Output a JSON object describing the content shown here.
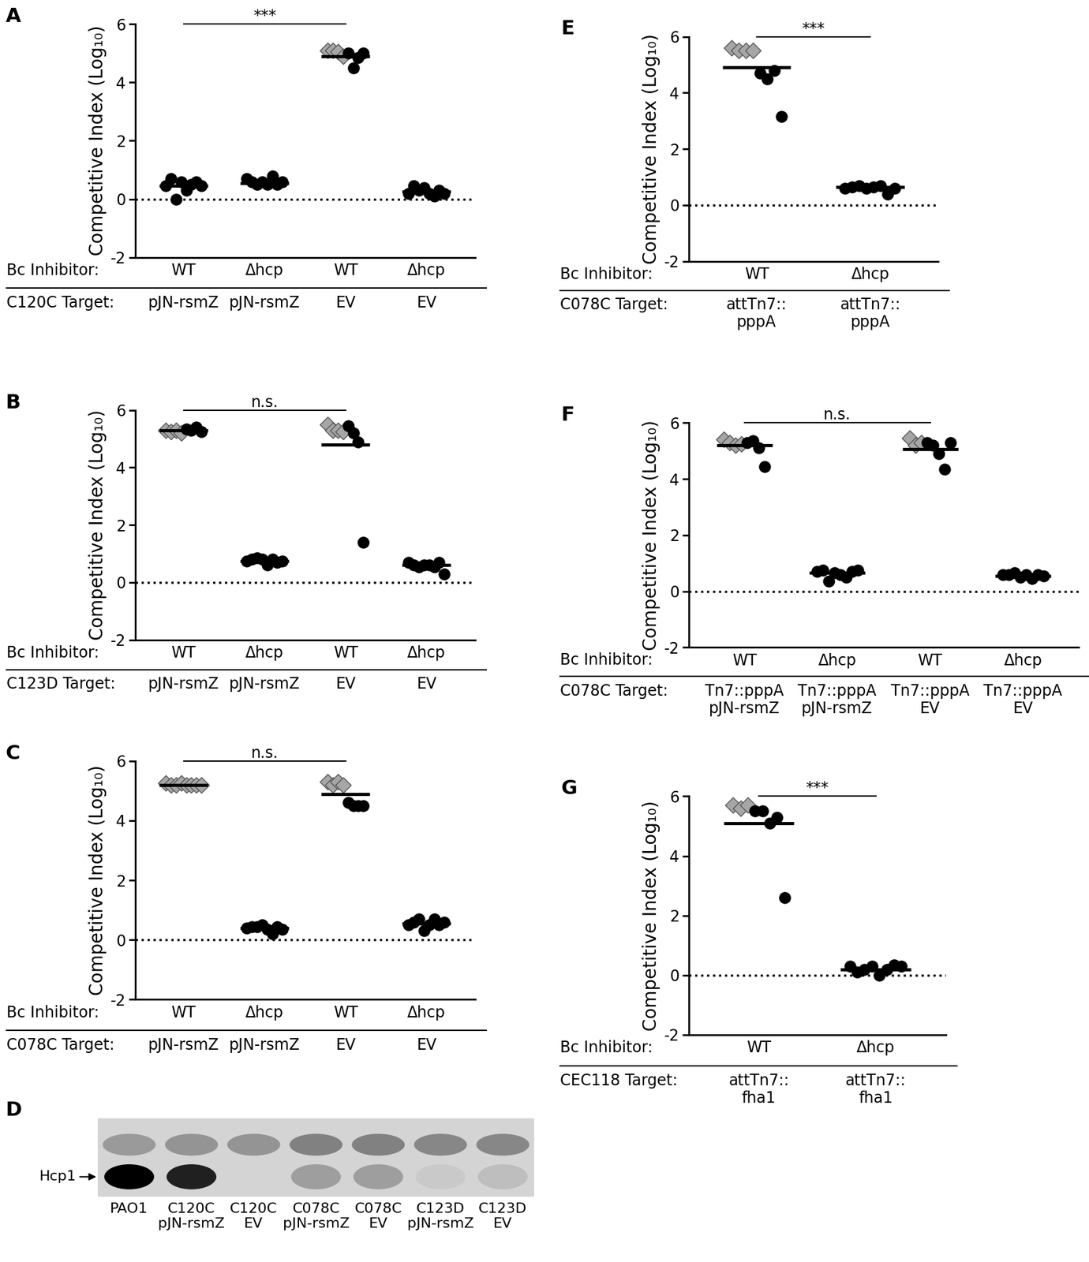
{
  "chart_data": [
    {
      "type": "scatter",
      "title": "A",
      "ylabel": "Competitive Index (Log₁₀)",
      "inhibitor_label": "Bc Inhibitor:",
      "target_label": "C120C Target:",
      "categories": [
        "WT",
        "Δhcp",
        "WT",
        "Δhcp"
      ],
      "targets": [
        "pJN-rsmZ",
        "pJN-rsmZ",
        "EV",
        "EV"
      ],
      "ylim": [
        -2,
        6
      ],
      "yticks": [
        -2,
        0,
        2,
        4,
        6
      ],
      "reference_line": 0,
      "series": [
        {
          "marker": "diamond",
          "color": "#a6a6a6",
          "values": [
            [],
            [],
            [
              5.1,
              5.1,
              5.05,
              4.9
            ],
            []
          ]
        },
        {
          "marker": "circle",
          "color": "#000000",
          "values": [
            [
              0.45,
              0.7,
              0.0,
              0.6,
              0.3,
              0.5,
              0.6,
              0.45
            ],
            [
              0.7,
              0.6,
              0.5,
              0.6,
              0.5,
              0.8,
              0.5,
              0.6
            ],
            [
              5.0,
              4.5,
              4.85,
              5.0
            ],
            [
              0.2,
              0.45,
              0.3,
              0.4,
              0.2,
              0.1,
              0.3,
              0.2
            ]
          ]
        }
      ],
      "means": [
        0.45,
        0.55,
        4.9,
        0.25
      ],
      "significance": {
        "between": [
          0,
          2
        ],
        "label": "***"
      }
    },
    {
      "type": "scatter",
      "title": "B",
      "ylabel": "Competitive Index (Log₁₀)",
      "inhibitor_label": "Bc Inhibitor:",
      "target_label": "C123D Target:",
      "categories": [
        "WT",
        "Δhcp",
        "WT",
        "Δhcp"
      ],
      "targets": [
        "pJN-rsmZ",
        "pJN-rsmZ",
        "EV",
        "EV"
      ],
      "ylim": [
        -2,
        6
      ],
      "yticks": [
        -2,
        0,
        2,
        4,
        6
      ],
      "reference_line": 0,
      "series": [
        {
          "marker": "diamond",
          "color": "#a6a6a6",
          "values": [
            [
              5.3,
              5.25,
              5.3,
              5.2
            ],
            [],
            [
              5.5,
              5.3,
              5.3,
              5.25
            ],
            []
          ]
        },
        {
          "marker": "circle",
          "color": "#000000",
          "values": [
            [
              5.35,
              5.3,
              5.4,
              5.25
            ],
            [
              0.75,
              0.8,
              0.85,
              0.8,
              0.6,
              0.8,
              0.7,
              0.75
            ],
            [
              5.45,
              5.2,
              4.9,
              1.4
            ],
            [
              0.7,
              0.6,
              0.55,
              0.6,
              0.6,
              0.55,
              0.7,
              0.3
            ]
          ]
        }
      ],
      "means": [
        5.3,
        0.75,
        4.8,
        0.6
      ],
      "significance": {
        "between": [
          0,
          2
        ],
        "label": "n.s."
      }
    },
    {
      "type": "scatter",
      "title": "C",
      "ylabel": "Competitive Index (Log₁₀)",
      "inhibitor_label": "Bc Inhibitor:",
      "target_label": "C078C Target:",
      "categories": [
        "WT",
        "Δhcp",
        "WT",
        "Δhcp"
      ],
      "targets": [
        "pJN-rsmZ",
        "pJN-rsmZ",
        "EV",
        "EV"
      ],
      "ylim": [
        -2,
        6
      ],
      "yticks": [
        -2,
        0,
        2,
        4,
        6
      ],
      "reference_line": 0,
      "series": [
        {
          "marker": "diamond",
          "color": "#a6a6a6",
          "values": [
            [
              5.25,
              5.2,
              5.2,
              5.25,
              5.2,
              5.2,
              5.2,
              5.2
            ],
            [],
            [
              5.3,
              5.2,
              5.3,
              5.2
            ],
            []
          ]
        },
        {
          "marker": "circle",
          "color": "#000000",
          "values": [
            [],
            [
              0.4,
              0.45,
              0.45,
              0.5,
              0.35,
              0.2,
              0.45,
              0.35
            ],
            [
              4.6,
              4.5,
              4.5,
              4.5
            ],
            [
              0.5,
              0.6,
              0.7,
              0.3,
              0.5,
              0.7,
              0.5,
              0.6
            ]
          ]
        }
      ],
      "means": [
        5.2,
        0.4,
        4.9,
        0.55
      ],
      "significance": {
        "between": [
          0,
          2
        ],
        "label": "n.s."
      }
    },
    {
      "type": "blot",
      "title": "D",
      "band_label": "Hcp1",
      "lanes": [
        "PAO1",
        "C120C\npJN-rsmZ",
        "C120C\nEV",
        "C078C\npJN-rsmZ",
        "C078C\nEV",
        "C123D\npJN-rsmZ",
        "C123D\nEV"
      ],
      "hcp1_intensity": [
        1.0,
        0.85,
        0.0,
        0.25,
        0.25,
        0.05,
        0.1
      ],
      "upper_band_intensity": [
        0.45,
        0.5,
        0.5,
        0.65,
        0.65,
        0.6,
        0.6
      ]
    },
    {
      "type": "scatter",
      "title": "E",
      "ylabel": "Competitive Index (Log₁₀)",
      "inhibitor_label": "Bc Inhibitor:",
      "target_label": "C078C Target:",
      "categories": [
        "WT",
        "Δhcp"
      ],
      "targets": [
        "attTn7::\npppA",
        "attTn7::\npppA"
      ],
      "ylim": [
        -2,
        6
      ],
      "yticks": [
        -2,
        0,
        2,
        4,
        6
      ],
      "reference_line": 0,
      "series": [
        {
          "marker": "diamond",
          "color": "#a6a6a6",
          "values": [
            [
              5.6,
              5.5,
              5.5,
              5.5
            ],
            []
          ]
        },
        {
          "marker": "circle",
          "color": "#000000",
          "values": [
            [
              4.7,
              4.5,
              4.8,
              3.15
            ],
            [
              0.6,
              0.65,
              0.7,
              0.6,
              0.65,
              0.7,
              0.4,
              0.6
            ]
          ]
        }
      ],
      "means": [
        4.9,
        0.65
      ],
      "significance": {
        "between": [
          0,
          1
        ],
        "label": "***"
      }
    },
    {
      "type": "scatter",
      "title": "F",
      "ylabel": "Competitive Index (Log₁₀)",
      "inhibitor_label": "Bc Inhibitor:",
      "target_label": "C078C Target:",
      "categories": [
        "WT",
        "Δhcp",
        "WT",
        "Δhcp"
      ],
      "targets": [
        "Tn7::pppA\npJN-rsmZ",
        "Tn7::pppA\npJN-rsmZ",
        "Tn7::pppA\nEV",
        "Tn7::pppA\nEV"
      ],
      "ylim": [
        -2,
        6
      ],
      "yticks": [
        -2,
        0,
        2,
        4,
        6
      ],
      "reference_line": 0,
      "series": [
        {
          "marker": "diamond",
          "color": "#a6a6a6",
          "values": [
            [
              5.4,
              5.3,
              5.2,
              5.25
            ],
            [],
            [
              5.45,
              5.2,
              5.3
            ],
            []
          ]
        },
        {
          "marker": "circle",
          "color": "#000000",
          "values": [
            [
              5.3,
              5.35,
              5.1,
              4.45
            ],
            [
              0.7,
              0.75,
              0.35,
              0.65,
              0.6,
              0.5,
              0.7,
              0.75
            ],
            [
              5.3,
              5.2,
              4.9,
              4.35,
              5.3
            ],
            [
              0.6,
              0.6,
              0.65,
              0.5,
              0.6,
              0.45,
              0.6,
              0.55
            ]
          ]
        }
      ],
      "means": [
        5.2,
        0.65,
        5.05,
        0.55
      ],
      "significance": {
        "between": [
          0,
          2
        ],
        "label": "n.s."
      }
    },
    {
      "type": "scatter",
      "title": "G",
      "ylabel": "Competitive Index (Log₁₀)",
      "inhibitor_label": "Bc Inhibitor:",
      "target_label": "CEC118 Target:",
      "categories": [
        "WT",
        "Δhcp"
      ],
      "targets": [
        "attTn7::\nfha1",
        "attTn7::\nfha1"
      ],
      "ylim": [
        -2,
        6
      ],
      "yticks": [
        -2,
        0,
        2,
        4,
        6
      ],
      "reference_line": 0,
      "series": [
        {
          "marker": "diamond",
          "color": "#a6a6a6",
          "values": [
            [
              5.7,
              5.6,
              5.7
            ],
            []
          ]
        },
        {
          "marker": "circle",
          "color": "#000000",
          "values": [
            [
              5.5,
              5.5,
              5.1,
              5.3,
              2.6
            ],
            [
              0.3,
              0.1,
              0.2,
              0.3,
              0.0,
              0.2,
              0.35,
              0.3
            ]
          ]
        }
      ],
      "means": [
        5.1,
        0.2
      ],
      "significance": {
        "between": [
          0,
          1
        ],
        "label": "***"
      }
    }
  ]
}
